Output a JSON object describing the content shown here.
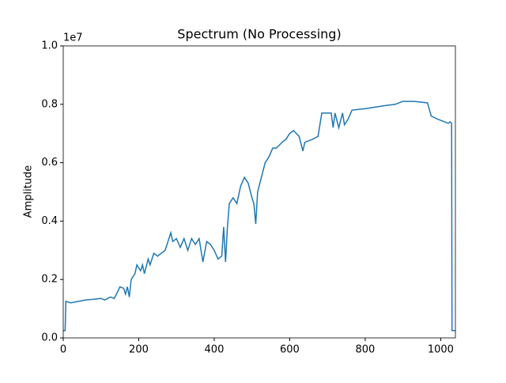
{
  "chart_data": {
    "type": "line",
    "title": "Spectrum (No Processing)",
    "ylabel": "Amplitude",
    "y_offset_label": "1e7",
    "x": [
      0,
      5,
      7,
      20,
      40,
      60,
      80,
      100,
      110,
      125,
      135,
      145,
      150,
      160,
      165,
      170,
      175,
      180,
      190,
      195,
      205,
      210,
      215,
      225,
      230,
      240,
      250,
      260,
      270,
      280,
      285,
      290,
      300,
      310,
      320,
      330,
      340,
      350,
      360,
      370,
      380,
      390,
      400,
      410,
      420,
      425,
      430,
      435,
      440,
      450,
      460,
      470,
      480,
      490,
      500,
      505,
      510,
      515,
      525,
      535,
      545,
      555,
      565,
      580,
      590,
      600,
      610,
      625,
      635,
      640,
      660,
      675,
      685,
      700,
      710,
      715,
      720,
      730,
      740,
      745,
      755,
      765,
      800,
      850,
      880,
      900,
      930,
      965,
      975,
      990,
      1010,
      1020,
      1025,
      1029,
      1030,
      1039
    ],
    "series": [
      {
        "name": "spectrum",
        "color": "#1f77b4",
        "values": [
          0.025,
          0.025,
          0.125,
          0.12,
          0.125,
          0.13,
          0.132,
          0.135,
          0.13,
          0.14,
          0.135,
          0.16,
          0.175,
          0.17,
          0.15,
          0.175,
          0.14,
          0.2,
          0.22,
          0.25,
          0.23,
          0.25,
          0.22,
          0.27,
          0.25,
          0.29,
          0.28,
          0.29,
          0.3,
          0.34,
          0.36,
          0.33,
          0.34,
          0.31,
          0.34,
          0.3,
          0.34,
          0.32,
          0.34,
          0.26,
          0.33,
          0.32,
          0.3,
          0.27,
          0.28,
          0.38,
          0.26,
          0.38,
          0.46,
          0.48,
          0.46,
          0.52,
          0.55,
          0.53,
          0.48,
          0.46,
          0.39,
          0.5,
          0.55,
          0.6,
          0.62,
          0.65,
          0.65,
          0.67,
          0.68,
          0.7,
          0.71,
          0.69,
          0.64,
          0.67,
          0.68,
          0.69,
          0.77,
          0.77,
          0.77,
          0.72,
          0.77,
          0.72,
          0.77,
          0.73,
          0.75,
          0.78,
          0.785,
          0.795,
          0.8,
          0.81,
          0.81,
          0.805,
          0.76,
          0.75,
          0.74,
          0.735,
          0.74,
          0.735,
          0.025,
          0.025
        ]
      }
    ],
    "xlim": [
      0,
      1039
    ],
    "xticks": [
      0,
      200,
      400,
      600,
      800,
      1000
    ],
    "ylim": [
      0,
      1
    ],
    "yticks": [
      {
        "value": 0,
        "label": "0.0"
      },
      0.2,
      0.4,
      0.6,
      0.8,
      {
        "value": 1,
        "label": "1.0"
      }
    ]
  }
}
